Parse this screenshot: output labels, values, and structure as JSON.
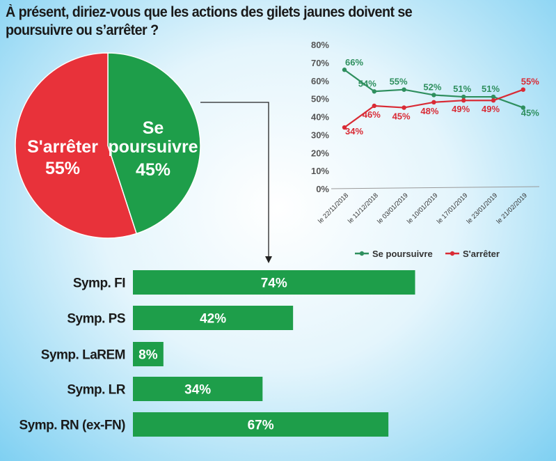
{
  "title": "À présent, diriez-vous que les actions des gilets jaunes doivent se poursuivre ou s’arrêter ?",
  "colors": {
    "continue": "#1e9e4a",
    "stop": "#e8323a",
    "line_continue": "#2e8f5e",
    "line_stop": "#d92b35"
  },
  "chart_data": [
    {
      "type": "pie",
      "labels": [
        {
          "name": "S'arrêter",
          "value": 55,
          "value_label": "55%",
          "color": "#e8323a"
        },
        {
          "name": "Se poursuivre",
          "value": 45,
          "value_label": "45%",
          "color": "#1e9e4a"
        }
      ],
      "text": {
        "stop_label": "S'arrêter",
        "stop_pct": "55%",
        "continue_line1": "Se",
        "continue_line2": "poursuivre",
        "continue_pct": "45%"
      }
    },
    {
      "type": "line",
      "x": [
        "le 22/11/2018",
        "le 11/12/2018",
        "le 03/01/2019",
        "le 10/01/2019",
        "le 17/01/2019",
        "le 23/01/2019",
        "le 21/02/2019"
      ],
      "series": [
        {
          "name": "Se poursuivre",
          "color": "#2e8f5e",
          "values": [
            66,
            54,
            55,
            52,
            51,
            51,
            45
          ]
        },
        {
          "name": "S'arrêter",
          "color": "#d92b35",
          "values": [
            34,
            46,
            45,
            48,
            49,
            49,
            55
          ]
        }
      ],
      "y_ticks": [
        "0%",
        "10%",
        "20%",
        "30%",
        "40%",
        "50%",
        "60%",
        "70%",
        "80%"
      ],
      "ylim": [
        0,
        80
      ],
      "legend_position": "bottom"
    },
    {
      "type": "bar",
      "orientation": "horizontal",
      "categories": [
        "Symp. FI",
        "Symp. PS",
        "Symp. LaREM",
        "Symp. LR",
        "Symp. RN (ex-FN)"
      ],
      "values": [
        74,
        42,
        8,
        34,
        67
      ],
      "value_labels": [
        "74%",
        "42%",
        "8%",
        "34%",
        "67%"
      ],
      "color": "#1e9e4a"
    }
  ]
}
